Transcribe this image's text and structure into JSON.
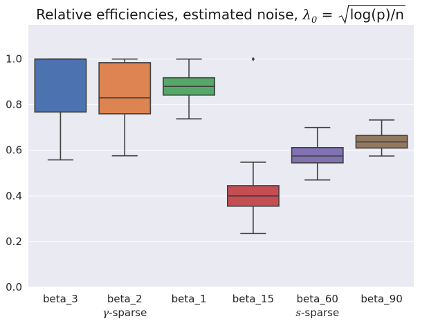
{
  "chart_data": {
    "type": "box",
    "title": "Relative efficiencies, estimated noise, λ₀ = √log(p)/n",
    "title_parts": {
      "prefix": "Relative efficiencies, estimated noise, ",
      "lambda": "λ",
      "sub": "0",
      "equals": " = ",
      "sqrt_arg": "log(p)/n"
    },
    "xlabel": "",
    "ylabel": "",
    "ylim": [
      0.0,
      1.15
    ],
    "yticks": [
      "0.0",
      "0.2",
      "0.4",
      "0.6",
      "0.8",
      "1.0"
    ],
    "grid": true,
    "categories": [
      "beta_3",
      "beta_2",
      "beta_1",
      "beta_15",
      "beta_60",
      "beta_90"
    ],
    "groups": [
      {
        "label_symbol": "γ",
        "label_rest": "-sparse",
        "categories": [
          "beta_3",
          "beta_2",
          "beta_1"
        ],
        "center": "beta_2"
      },
      {
        "label_symbol": "s",
        "label_rest": "-sparse",
        "categories": [
          "beta_15",
          "beta_60",
          "beta_90"
        ],
        "center": "beta_60"
      }
    ],
    "series": [
      {
        "name": "beta_3",
        "color": "#4c72b0",
        "whisker_low": 0.558,
        "q1": 0.768,
        "median": 1.0,
        "q3": 1.0,
        "whisker_high": 1.0,
        "outliers": []
      },
      {
        "name": "beta_2",
        "color": "#dd8452",
        "whisker_low": 0.576,
        "q1": 0.76,
        "median": 0.83,
        "q3": 0.984,
        "whisker_high": 1.0,
        "outliers": []
      },
      {
        "name": "beta_1",
        "color": "#55a868",
        "whisker_low": 0.738,
        "q1": 0.842,
        "median": 0.88,
        "q3": 0.918,
        "whisker_high": 1.0,
        "outliers": []
      },
      {
        "name": "beta_15",
        "color": "#c44e52",
        "whisker_low": 0.235,
        "q1": 0.355,
        "median": 0.4,
        "q3": 0.445,
        "whisker_high": 0.548,
        "outliers": [
          1.0
        ]
      },
      {
        "name": "beta_60",
        "color": "#8172b3",
        "whisker_low": 0.47,
        "q1": 0.545,
        "median": 0.575,
        "q3": 0.612,
        "whisker_high": 0.7,
        "outliers": []
      },
      {
        "name": "beta_90",
        "color": "#937860",
        "whisker_low": 0.575,
        "q1": 0.61,
        "median": 0.637,
        "q3": 0.665,
        "whisker_high": 0.733,
        "outliers": []
      }
    ]
  }
}
